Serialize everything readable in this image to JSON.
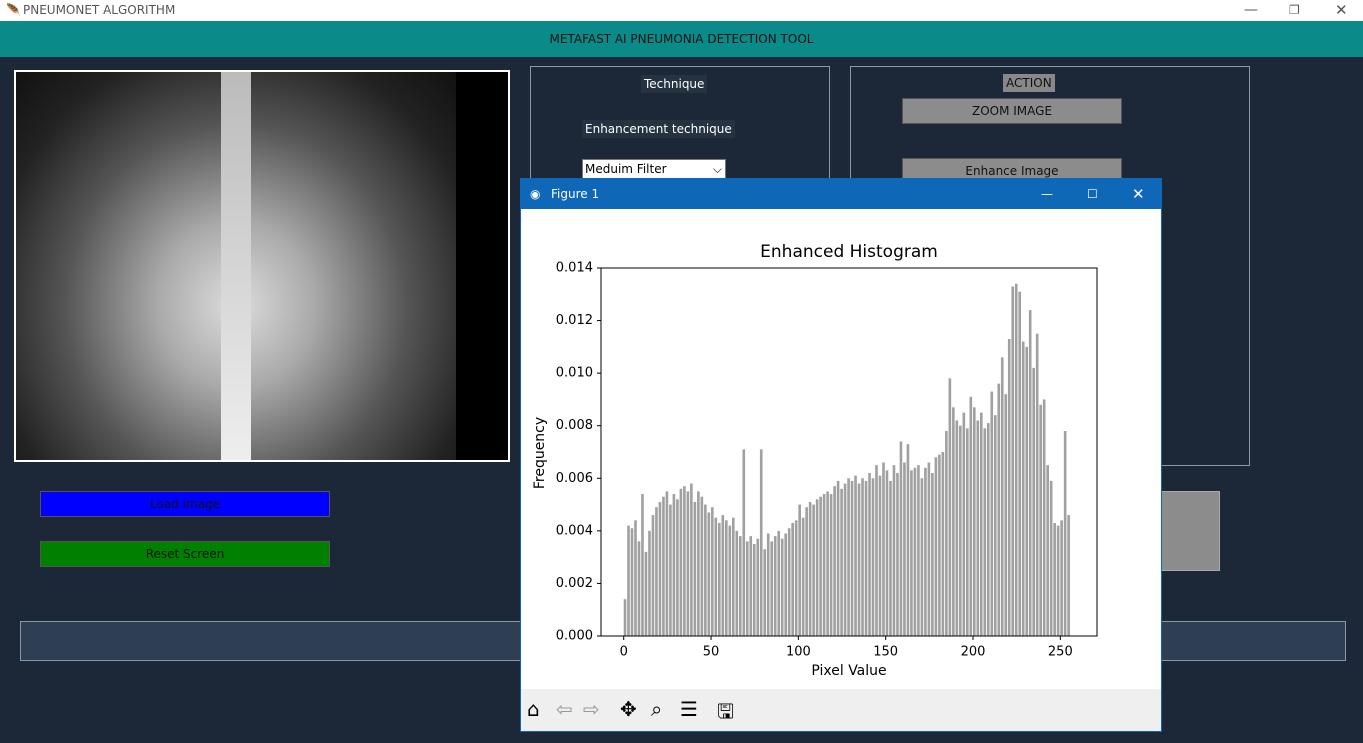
{
  "window": {
    "title": "PNEUMONET ALGORITHM",
    "header": "METAFAST AI PNEUMONIA DETECTION TOOL"
  },
  "technique_panel": {
    "title": "Technique",
    "enhancement_label": "Enhancement technique",
    "selected_filter": "Meduim Filter"
  },
  "action_panel": {
    "title": "ACTION",
    "buttons": [
      "ZOOM IMAGE",
      "Enhance Image"
    ]
  },
  "buttons": [
    "Load image",
    "Reset Screen"
  ],
  "figure": {
    "title": "Figure 1"
  },
  "chart_data": {
    "type": "histogram",
    "title": "Enhanced Histogram",
    "x_label": "Pixel Value",
    "y_label": "Frequency",
    "color": "#a0a0a0",
    "bins": [
      0,
      2,
      4,
      6,
      8,
      10,
      12,
      14,
      16,
      18,
      20,
      22,
      24,
      26,
      28,
      30,
      32,
      34,
      36,
      38,
      40,
      42,
      44,
      46,
      48,
      50,
      52,
      54,
      56,
      58,
      60,
      62,
      64,
      66,
      68,
      70,
      72,
      74,
      76,
      78,
      80,
      82,
      84,
      86,
      88,
      90,
      92,
      94,
      96,
      98,
      100,
      102,
      104,
      106,
      108,
      110,
      112,
      114,
      116,
      118,
      120,
      122,
      124,
      126,
      128,
      130,
      132,
      134,
      136,
      138,
      140,
      142,
      144,
      146,
      148,
      150,
      152,
      154,
      156,
      158,
      160,
      162,
      164,
      166,
      168,
      170,
      172,
      174,
      176,
      178,
      180,
      182,
      184,
      186,
      188,
      190,
      192,
      194,
      196,
      198,
      200,
      202,
      204,
      206,
      208,
      210,
      212,
      214,
      216,
      218,
      220,
      222,
      224,
      226,
      228,
      230,
      232,
      234,
      236,
      238,
      240,
      242,
      244,
      246,
      248,
      250,
      252,
      254,
      256
    ],
    "counts": [
      0.0014,
      0.0042,
      0.0041,
      0.0044,
      0.0036,
      0.0054,
      0.0032,
      0.004,
      0.0046,
      0.0049,
      0.0051,
      0.0053,
      0.0055,
      0.005,
      0.0054,
      0.0052,
      0.0056,
      0.0057,
      0.0055,
      0.0058,
      0.0051,
      0.0055,
      0.0053,
      0.005,
      0.0047,
      0.0049,
      0.0045,
      0.0043,
      0.0046,
      0.0044,
      0.0042,
      0.0045,
      0.004,
      0.0038,
      0.0071,
      0.0036,
      0.0038,
      0.0035,
      0.0037,
      0.0071,
      0.0033,
      0.0039,
      0.0036,
      0.0038,
      0.004,
      0.0037,
      0.0039,
      0.0041,
      0.0043,
      0.0044,
      0.005,
      0.0045,
      0.0049,
      0.0051,
      0.005,
      0.0052,
      0.0053,
      0.0054,
      0.0055,
      0.0054,
      0.0057,
      0.0059,
      0.0056,
      0.0058,
      0.006,
      0.0059,
      0.0061,
      0.0058,
      0.006,
      0.0059,
      0.0062,
      0.006,
      0.0065,
      0.0061,
      0.0066,
      0.0063,
      0.0059,
      0.0065,
      0.0062,
      0.0074,
      0.0066,
      0.0073,
      0.0063,
      0.0064,
      0.0065,
      0.006,
      0.0064,
      0.0066,
      0.0062,
      0.0068,
      0.0069,
      0.007,
      0.0078,
      0.0098,
      0.0087,
      0.0082,
      0.008,
      0.0085,
      0.0079,
      0.0091,
      0.0087,
      0.0082,
      0.0085,
      0.0079,
      0.0081,
      0.0093,
      0.0084,
      0.0096,
      0.0106,
      0.0092,
      0.0113,
      0.0133,
      0.0134,
      0.0131,
      0.0112,
      0.011,
      0.0124,
      0.0102,
      0.0115,
      0.0088,
      0.009,
      0.0065,
      0.0059,
      0.0043,
      0.0042,
      0.0044,
      0.0078,
      0.0046
    ],
    "xlim": [
      -13,
      271
    ],
    "xticks": [
      0,
      50,
      100,
      150,
      200,
      250
    ],
    "ylim": [
      0,
      0.014
    ],
    "yticks": [
      {
        "value": 0,
        "label": "0.000"
      },
      {
        "value": 0.002,
        "label": "0.002"
      },
      {
        "value": 0.004,
        "label": "0.004"
      },
      {
        "value": 0.006,
        "label": "0.006"
      },
      {
        "value": 0.008,
        "label": "0.008"
      },
      {
        "value": 0.01,
        "label": "0.010"
      },
      {
        "value": 0.012,
        "label": "0.012"
      },
      {
        "value": 0.014,
        "label": "0.014"
      }
    ],
    "grid": false
  }
}
